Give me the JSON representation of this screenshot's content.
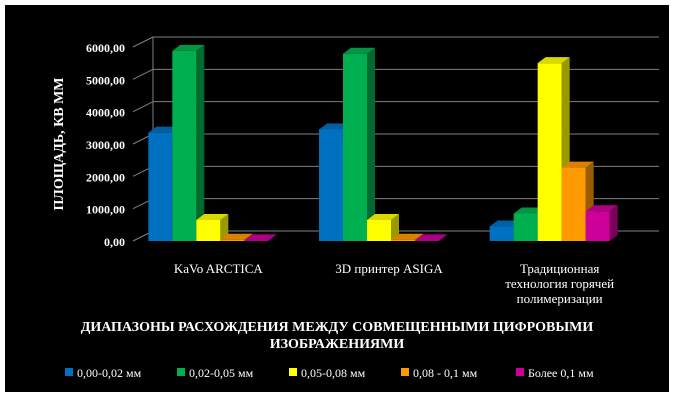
{
  "chart_data": {
    "type": "bar",
    "view": "3d-clustered-column",
    "title": "",
    "ylabel": "ПЛОЩАДЬ, КВ ММ",
    "xlabel": "ДИАПАЗОНЫ РАСХОЖДЕНИЯ МЕЖДУ СОВМЕЩЕННЫМИ ЦИФРОВЫМИ ИЗОБРАЖЕНИЯМИ",
    "ylim": [
      0,
      6000
    ],
    "yticks": [
      "0,00",
      "1000,00",
      "2000,00",
      "3000,00",
      "4000,00",
      "5000,00",
      "6000,00"
    ],
    "grid": true,
    "legend_position": "bottom",
    "categories": [
      "KaVo ARCTICA",
      "3D принтер ASIGA",
      "Традиционная технология горячей полимеризации"
    ],
    "series": [
      {
        "name": "0,00-0,02  мм",
        "color": "#0070C0",
        "values": [
          3350,
          3450,
          450
        ]
      },
      {
        "name": "0,02-0,05  мм",
        "color": "#00B050",
        "values": [
          5880,
          5790,
          850
        ]
      },
      {
        "name": "0,05-0,08  мм",
        "color": "#FFFF00",
        "values": [
          650,
          650,
          5500
        ]
      },
      {
        "name": "0,08 - 0,1  мм",
        "color": "#FF9900",
        "values": [
          40,
          40,
          2270
        ]
      },
      {
        "name": "Более 0,1 мм",
        "color": "#CC0099",
        "values": [
          20,
          20,
          920
        ]
      }
    ]
  }
}
